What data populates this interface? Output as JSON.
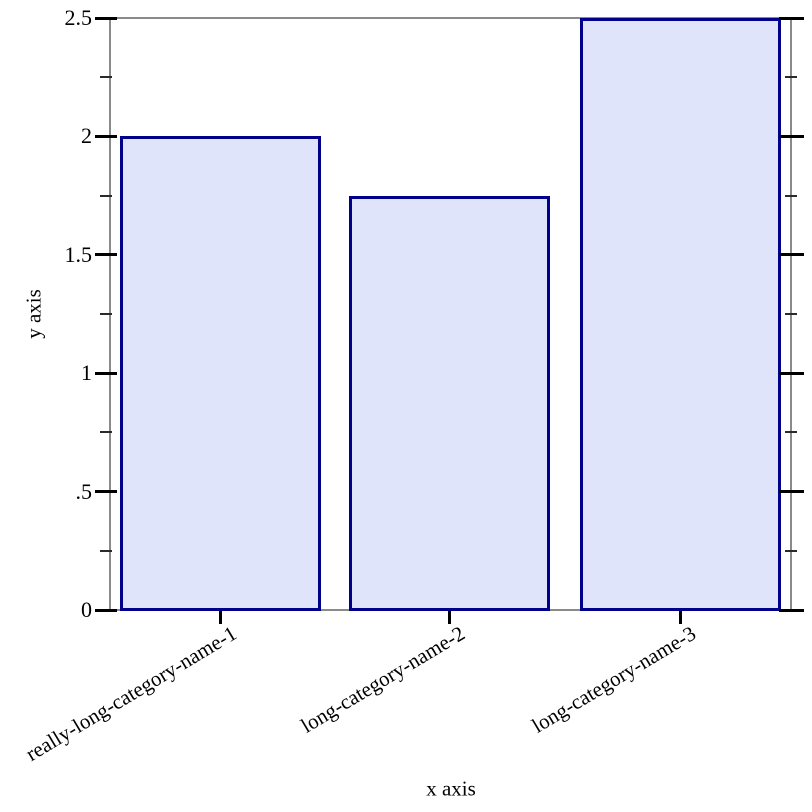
{
  "chart_data": {
    "type": "bar",
    "title": "",
    "xlabel": "x axis",
    "ylabel": "y axis",
    "categories": [
      "really-long-category-name-1",
      "long-category-name-2",
      "long-category-name-3"
    ],
    "values": [
      2,
      1.75,
      2.5
    ],
    "ylim": [
      0,
      2.5
    ],
    "y_major_ticks": {
      "values": [
        0,
        0.5,
        1,
        1.5,
        2,
        2.5
      ],
      "labels": [
        "0",
        ".5",
        "1",
        "1.5",
        "2",
        "2.5"
      ]
    },
    "y_minor_tick_values": [
      0.25,
      0.75,
      1.25,
      1.75,
      2.25
    ],
    "grid": false,
    "legend_position": "none",
    "category_label_rotation_deg": -31,
    "colors": {
      "bar_fill": "#e0e4fa",
      "bar_border": "#00008b",
      "axis_frame": "#8a8a8a",
      "tick": "#000000",
      "text": "#000000",
      "background": "#ffffff"
    }
  }
}
